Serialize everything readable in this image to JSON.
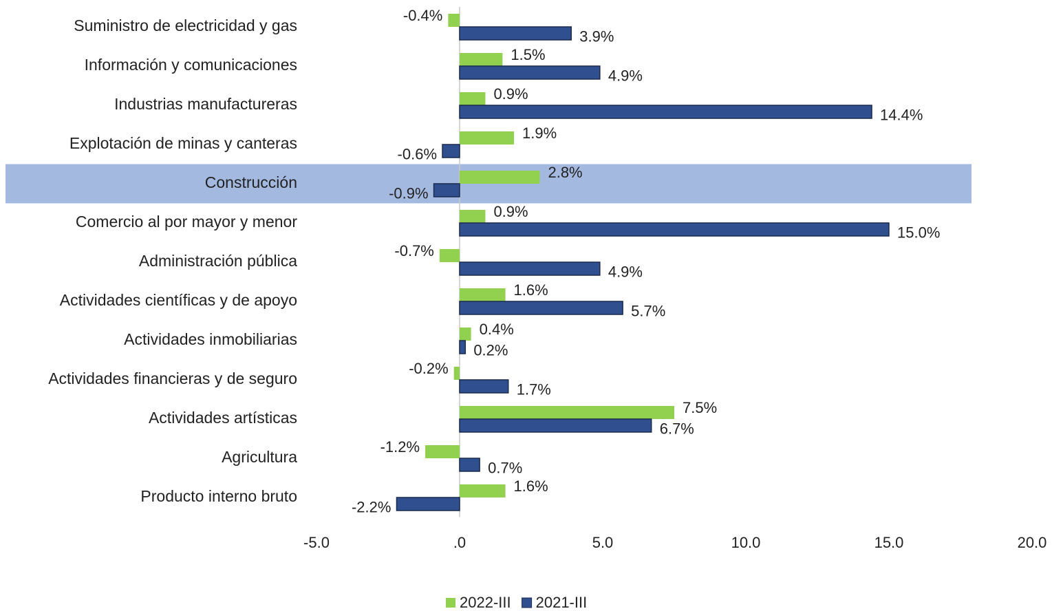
{
  "chart_data": {
    "type": "hbar",
    "categories": [
      "Suministro de electricidad y gas",
      "Información y comunicaciones",
      "Industrias manufactureras",
      "Explotación de minas y canteras",
      "Construcción",
      "Comercio al por mayor y menor",
      "Administración pública",
      "Actividades científicas y de apoyo",
      "Actividades inmobiliarias",
      "Actividades financieras y de seguro",
      "Actividades artísticas",
      "Agricultura",
      "Producto interno bruto"
    ],
    "series": [
      {
        "name": "2022-III",
        "color": "#92d050",
        "values": [
          -0.4,
          1.5,
          0.9,
          1.9,
          2.8,
          0.9,
          -0.7,
          1.6,
          0.4,
          -0.2,
          7.5,
          -1.2,
          1.6
        ],
        "value_labels": [
          "-0.4%",
          "1.5%",
          "0.9%",
          "1.9%",
          "2.8%",
          "0.9%",
          "-0.7%",
          "1.6%",
          "0.4%",
          "-0.2%",
          "7.5%",
          "-1.2%",
          "1.6%"
        ]
      },
      {
        "name": "2021-III",
        "color": "#2f4f8f",
        "values": [
          3.9,
          4.9,
          14.4,
          -0.6,
          -0.9,
          15.0,
          4.9,
          5.7,
          0.2,
          1.7,
          6.7,
          0.7,
          -2.2
        ],
        "value_labels": [
          "3.9%",
          "4.9%",
          "14.4%",
          "-0.6%",
          "-0.9%",
          "15.0%",
          "4.9%",
          "5.7%",
          "0.2%",
          "1.7%",
          "6.7%",
          "0.7%",
          "-2.2%"
        ]
      }
    ],
    "xlim": [
      -5,
      20
    ],
    "xticks": [
      {
        "value": -5,
        "label": "-5.0"
      },
      {
        "value": 0,
        "label": ".0"
      },
      {
        "value": 5,
        "label": "5.0"
      },
      {
        "value": 10,
        "label": "10.0"
      },
      {
        "value": 15,
        "label": "15.0"
      },
      {
        "value": 20,
        "label": "20.0"
      }
    ],
    "highlight_index": 4,
    "legend": "bottom"
  }
}
